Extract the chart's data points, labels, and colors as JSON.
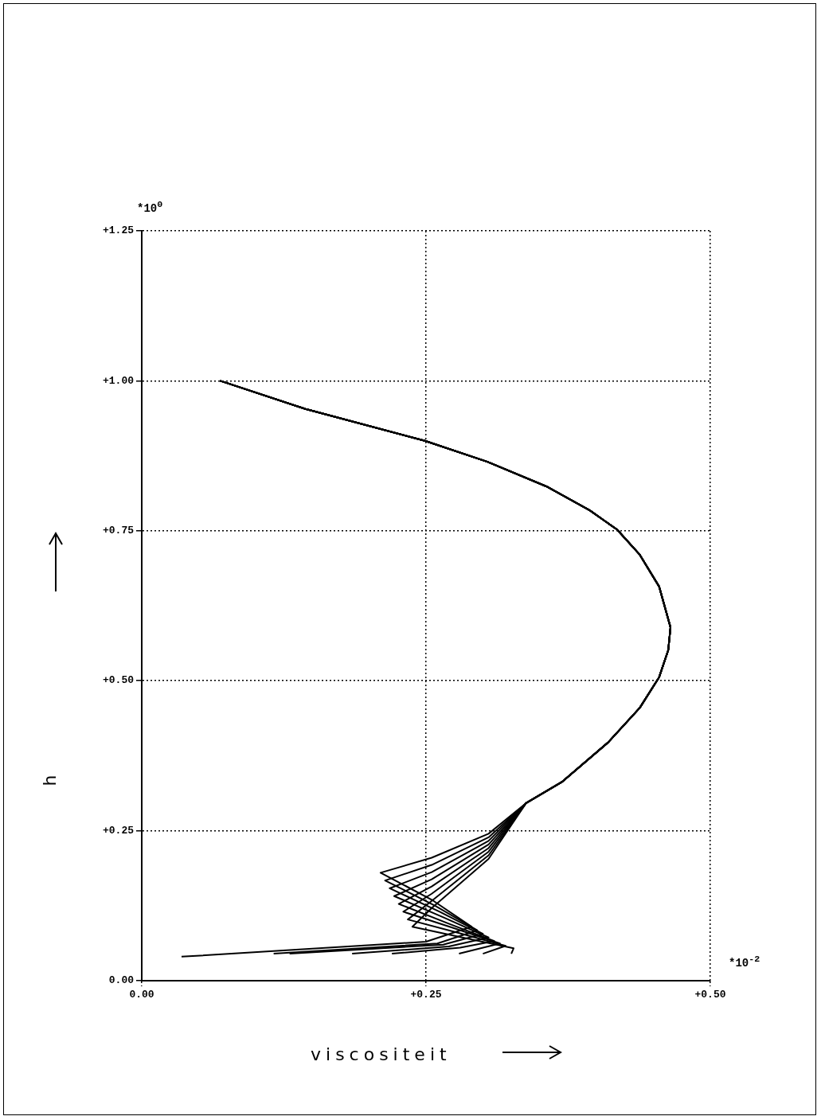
{
  "chart_data": {
    "type": "line",
    "xlabel": "viscositeit",
    "ylabel": "h",
    "annotations": [
      "*10$^{0}$",
      "*10$^{-2}$"
    ],
    "xlim": [
      0,
      0.5
    ],
    "xticks": [
      {
        "value": 0,
        "label": "0.00"
      },
      {
        "value": 0.25,
        "label": "+0.25"
      },
      {
        "value": 0.5,
        "label": "+0.50"
      }
    ],
    "ylim": [
      0,
      1.25
    ],
    "yticks": [
      {
        "value": 0,
        "label": "0.00"
      },
      {
        "value": 0.25,
        "label": "+0.25"
      },
      {
        "value": 0.5,
        "label": "+0.50"
      },
      {
        "value": 0.75,
        "label": "+0.75"
      },
      {
        "value": 1,
        "label": "+1.00"
      },
      {
        "value": 1.25,
        "label": "+1.25"
      }
    ],
    "grid": true,
    "legend": false,
    "marker": "none",
    "line_style": "solid",
    "series": [
      {
        "color": "#000000",
        "x": [
          0.069,
          0.144,
          0.249,
          0.304,
          0.357,
          0.394,
          0.418,
          0.438,
          0.455,
          0.465,
          0.463,
          0.455,
          0.438,
          0.41,
          0.37,
          0.338,
          0.305,
          0.255,
          0.21,
          0.255,
          0.29,
          0.25,
          0.035
        ],
        "values": [
          1.0,
          0.953,
          0.9,
          0.865,
          0.823,
          0.784,
          0.752,
          0.71,
          0.657,
          0.589,
          0.551,
          0.506,
          0.455,
          0.397,
          0.332,
          0.296,
          0.245,
          0.205,
          0.18,
          0.135,
          0.09,
          0.065,
          0.04
        ]
      },
      {
        "color": "#000000",
        "x": [
          0.069,
          0.144,
          0.249,
          0.304,
          0.357,
          0.394,
          0.418,
          0.438,
          0.455,
          0.465,
          0.463,
          0.455,
          0.438,
          0.41,
          0.37,
          0.338,
          0.305,
          0.255,
          0.214,
          0.258,
          0.295,
          0.26,
          0.116
        ],
        "values": [
          1.0,
          0.953,
          0.9,
          0.865,
          0.823,
          0.784,
          0.752,
          0.71,
          0.657,
          0.589,
          0.551,
          0.506,
          0.455,
          0.397,
          0.332,
          0.296,
          0.239,
          0.193,
          0.167,
          0.125,
          0.084,
          0.062,
          0.045
        ]
      },
      {
        "color": "#000000",
        "x": [
          0.069,
          0.144,
          0.249,
          0.304,
          0.357,
          0.394,
          0.418,
          0.438,
          0.455,
          0.465,
          0.463,
          0.455,
          0.438,
          0.41,
          0.37,
          0.338,
          0.305,
          0.255,
          0.218,
          0.262,
          0.3,
          0.265,
          0.13
        ],
        "values": [
          1.0,
          0.953,
          0.9,
          0.865,
          0.823,
          0.784,
          0.752,
          0.71,
          0.657,
          0.589,
          0.551,
          0.506,
          0.455,
          0.397,
          0.332,
          0.296,
          0.233,
          0.181,
          0.154,
          0.115,
          0.078,
          0.06,
          0.045
        ]
      },
      {
        "color": "#000000",
        "x": [
          0.069,
          0.144,
          0.249,
          0.304,
          0.357,
          0.394,
          0.418,
          0.438,
          0.455,
          0.465,
          0.463,
          0.455,
          0.438,
          0.41,
          0.37,
          0.338,
          0.305,
          0.255,
          0.222,
          0.266,
          0.305,
          0.27,
          0.185
        ],
        "values": [
          1.0,
          0.953,
          0.9,
          0.865,
          0.823,
          0.784,
          0.752,
          0.71,
          0.657,
          0.589,
          0.551,
          0.506,
          0.455,
          0.397,
          0.332,
          0.296,
          0.227,
          0.169,
          0.141,
          0.105,
          0.072,
          0.057,
          0.045
        ]
      },
      {
        "color": "#000000",
        "x": [
          0.069,
          0.144,
          0.249,
          0.304,
          0.357,
          0.394,
          0.418,
          0.438,
          0.455,
          0.465,
          0.463,
          0.455,
          0.438,
          0.41,
          0.37,
          0.338,
          0.305,
          0.255,
          0.226,
          0.27,
          0.31,
          0.28,
          0.22
        ],
        "values": [
          1.0,
          0.953,
          0.9,
          0.865,
          0.823,
          0.784,
          0.752,
          0.71,
          0.657,
          0.589,
          0.551,
          0.506,
          0.455,
          0.397,
          0.332,
          0.296,
          0.221,
          0.157,
          0.128,
          0.095,
          0.066,
          0.055,
          0.045
        ]
      },
      {
        "color": "#000000",
        "x": [
          0.069,
          0.144,
          0.249,
          0.304,
          0.357,
          0.394,
          0.418,
          0.438,
          0.455,
          0.465,
          0.463,
          0.455,
          0.438,
          0.41,
          0.37,
          0.338,
          0.305,
          0.255,
          0.23,
          0.274,
          0.315,
          0.279
        ],
        "values": [
          1.0,
          0.953,
          0.9,
          0.865,
          0.823,
          0.784,
          0.752,
          0.71,
          0.657,
          0.589,
          0.551,
          0.506,
          0.455,
          0.397,
          0.332,
          0.296,
          0.215,
          0.145,
          0.115,
          0.088,
          0.062,
          0.045
        ]
      },
      {
        "color": "#000000",
        "x": [
          0.069,
          0.144,
          0.249,
          0.304,
          0.357,
          0.394,
          0.418,
          0.438,
          0.455,
          0.465,
          0.463,
          0.455,
          0.438,
          0.41,
          0.37,
          0.338,
          0.305,
          0.255,
          0.234,
          0.278,
          0.32,
          0.3
        ],
        "values": [
          1.0,
          0.953,
          0.9,
          0.865,
          0.823,
          0.784,
          0.752,
          0.71,
          0.657,
          0.589,
          0.551,
          0.506,
          0.455,
          0.397,
          0.332,
          0.296,
          0.209,
          0.133,
          0.102,
          0.08,
          0.058,
          0.045
        ]
      },
      {
        "color": "#000000",
        "x": [
          0.069,
          0.144,
          0.249,
          0.304,
          0.357,
          0.394,
          0.418,
          0.438,
          0.455,
          0.465,
          0.463,
          0.455,
          0.438,
          0.41,
          0.37,
          0.338,
          0.305,
          0.255,
          0.238,
          0.282,
          0.327,
          0.325
        ],
        "values": [
          1.0,
          0.953,
          0.9,
          0.865,
          0.823,
          0.784,
          0.752,
          0.71,
          0.657,
          0.589,
          0.551,
          0.506,
          0.455,
          0.397,
          0.332,
          0.296,
          0.203,
          0.121,
          0.09,
          0.072,
          0.054,
          0.045
        ]
      }
    ]
  }
}
